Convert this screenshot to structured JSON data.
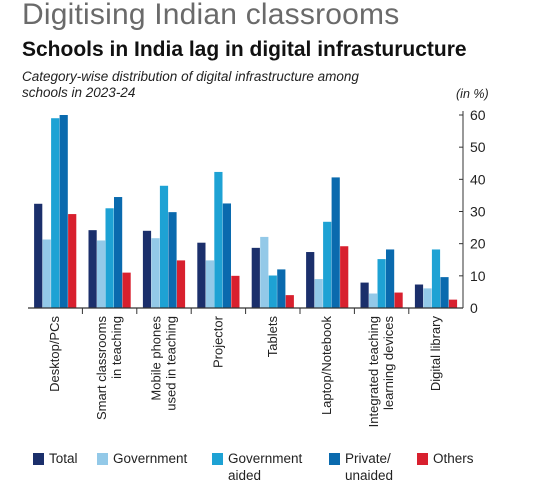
{
  "header": {
    "title": "Digitising Indian classrooms",
    "chart_title": "Schools in India lag in digital infrasturucture",
    "subtitle": "Category-wise distribution of digital infrastructure among schools in 2023-24",
    "unit": "(in %)"
  },
  "colors": {
    "total": "#1b2f6b",
    "government": "#93c9e8",
    "government_aided": "#1ea2d4",
    "private_unaided": "#0a6aae",
    "others": "#d8202e",
    "axis": "#333333",
    "grid": "#bfbfbf"
  },
  "legend": [
    {
      "label": "Total",
      "color": "#1b2f6b"
    },
    {
      "label": "Government",
      "color": "#93c9e8"
    },
    {
      "label": "Government aided",
      "color": "#1ea2d4"
    },
    {
      "label": "Private/ unaided",
      "color": "#0a6aae"
    },
    {
      "label": "Others",
      "color": "#d8202e"
    }
  ],
  "chart_data": {
    "type": "bar",
    "title": "Schools in India lag in digital infrasturucture",
    "subtitle": "Category-wise distribution of digital infrastructure among schools in 2023-24",
    "ylabel": "(in %)",
    "ylim": [
      0,
      60
    ],
    "yticks": [
      0,
      10,
      20,
      30,
      40,
      50,
      60
    ],
    "y_axis_side": "right",
    "grid": false,
    "legend_position": "bottom",
    "categories": [
      "Desktop/PCs",
      "Smart classrooms in teaching",
      "Mobile phones used in teaching",
      "Projector",
      "Tablets",
      "Laptop/Notebook",
      "Integrated teaching learning devices",
      "Digital library"
    ],
    "category_label_lines": [
      [
        "Desktop/PCs"
      ],
      [
        "Smart classrooms",
        "in teaching"
      ],
      [
        "Mobile phones",
        "used in teaching"
      ],
      [
        "Projector"
      ],
      [
        "Tablets"
      ],
      [
        "Laptop/Notebook"
      ],
      [
        "Integrated teaching",
        "learning devices"
      ],
      [
        "Digital library"
      ]
    ],
    "series": [
      {
        "name": "Total",
        "color": "#1b2f6b",
        "values": [
          32.4,
          24.2,
          24.0,
          20.3,
          18.7,
          17.4,
          7.9,
          7.3
        ]
      },
      {
        "name": "Government",
        "color": "#93c9e8",
        "values": [
          21.3,
          21.0,
          21.7,
          14.8,
          22.1,
          9.0,
          4.5,
          6.1
        ]
      },
      {
        "name": "Government aided",
        "color": "#1ea2d4",
        "values": [
          59.0,
          31.0,
          38.0,
          42.3,
          10.1,
          26.8,
          15.2,
          18.2
        ]
      },
      {
        "name": "Private/ unaided",
        "color": "#0a6aae",
        "values": [
          60.0,
          34.5,
          29.8,
          32.5,
          12.0,
          40.6,
          18.2,
          9.6
        ]
      },
      {
        "name": "Others",
        "color": "#d8202e",
        "values": [
          29.2,
          11.0,
          14.8,
          10.0,
          4.0,
          19.2,
          4.8,
          2.6
        ]
      }
    ]
  }
}
